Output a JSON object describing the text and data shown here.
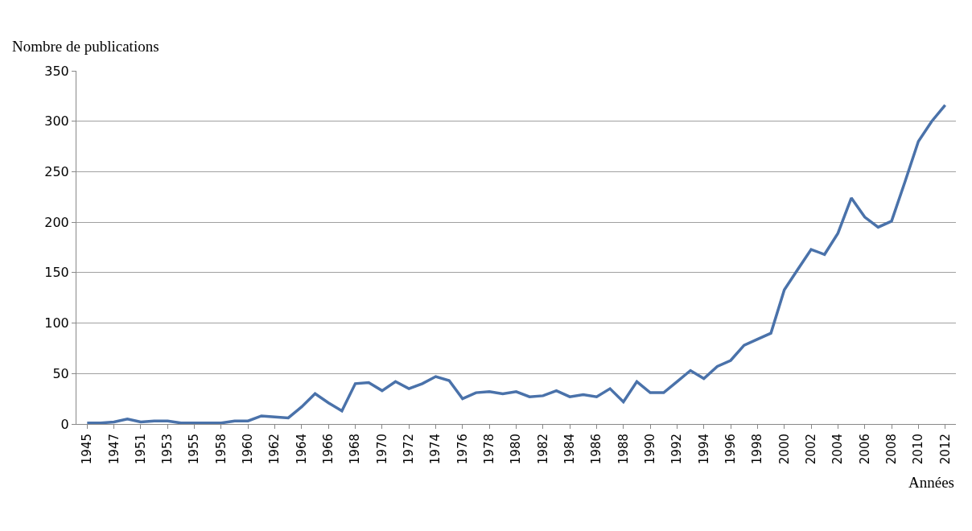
{
  "chart_data": {
    "type": "line",
    "ylabel": "Nombre de publications",
    "xlabel": "Années",
    "categories": [
      "1945",
      null,
      "1947",
      null,
      "1951",
      null,
      "1953",
      null,
      "1955",
      null,
      "1958",
      null,
      "1960",
      null,
      "1962",
      null,
      "1964",
      null,
      "1966",
      null,
      "1968",
      null,
      "1970",
      null,
      "1972",
      null,
      "1974",
      null,
      "1976",
      null,
      "1978",
      null,
      "1980",
      null,
      "1982",
      null,
      "1984",
      null,
      "1986",
      null,
      "1988",
      null,
      "1990",
      null,
      "1992",
      null,
      "1994",
      null,
      "1996",
      null,
      "1998",
      null,
      "2000",
      null,
      "2002",
      null,
      "2004",
      null,
      "2006",
      null,
      "2008",
      null,
      "2010",
      null,
      "2012"
    ],
    "series": [
      {
        "color": "#4a72aa",
        "values": [
          1,
          1,
          2,
          5,
          2,
          3,
          3,
          1,
          1,
          1,
          1,
          3,
          3,
          8,
          7,
          6,
          17,
          30,
          21,
          13,
          40,
          41,
          33,
          42,
          35,
          40,
          47,
          43,
          25,
          31,
          32,
          30,
          32,
          27,
          28,
          33,
          27,
          29,
          27,
          35,
          22,
          42,
          31,
          31,
          42,
          53,
          45,
          57,
          63,
          78,
          84,
          90,
          133,
          153,
          173,
          168,
          189,
          224,
          205,
          195,
          201,
          240,
          280,
          300,
          316
        ]
      }
    ],
    "ylim": [
      0,
      350
    ],
    "yticks": [
      0,
      50,
      100,
      150,
      200,
      250,
      300,
      350
    ],
    "grid": "y",
    "marker": "none",
    "line_style": "solid"
  }
}
